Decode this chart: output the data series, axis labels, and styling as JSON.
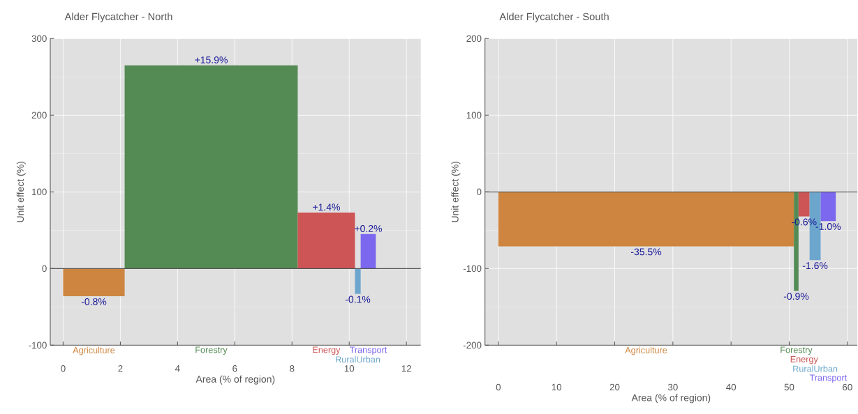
{
  "chart_data": [
    {
      "type": "histogram",
      "title": "Alder Flycatcher - North",
      "xlabel": "Area (% of region)",
      "ylabel": "Unit effect (%)",
      "categories": [
        "Agriculture",
        "Forestry",
        "Energy",
        "RuralUrban",
        "Transport"
      ],
      "bins": [
        0,
        2.15,
        8.2,
        10.2,
        10.4,
        10.93
      ],
      "values": [
        -36,
        265,
        73,
        -33,
        45
      ],
      "colors": [
        "#cd853f",
        "#548b54",
        "#cd5555",
        "#6ca6cd",
        "#7b68ee"
      ],
      "annotations": [
        {
          "text": "-0.8%",
          "x": 1.075,
          "y": -36
        },
        {
          "text": "+15.9%",
          "x": 5.175,
          "y": 265
        },
        {
          "text": "+1.4%",
          "x": 9.2,
          "y": 73
        },
        {
          "text": "-0.1%",
          "x": 10.3,
          "y": -33
        },
        {
          "text": "+0.2%",
          "x": 10.665,
          "y": 45
        }
      ],
      "xlim": [
        -0.45,
        12.5
      ],
      "ylim": [
        -100,
        300
      ],
      "xticks": [
        0,
        2,
        4,
        6,
        8,
        10,
        12
      ],
      "yticks": [
        -100,
        0,
        100,
        200,
        300
      ],
      "ref_lines": [
        {
          "axis": "y",
          "value": 0,
          "color": "#555555"
        }
      ],
      "grid": true
    },
    {
      "type": "histogram",
      "title": "Alder Flycatcher - South",
      "xlabel": "Area (% of region)",
      "ylabel": "Unit effect (%)",
      "categories": [
        "Agriculture",
        "Forestry",
        "Energy",
        "RuralUrban",
        "Transport"
      ],
      "bins": [
        0,
        50.8,
        51.6,
        53.5,
        55.4,
        58.0
      ],
      "values": [
        -71,
        -129,
        -32,
        -89,
        -38
      ],
      "colors": [
        "#cd853f",
        "#548b54",
        "#cd5555",
        "#6ca6cd",
        "#7b68ee"
      ],
      "annotations": [
        {
          "text": "-35.5%",
          "x": 25.4,
          "y": -71
        },
        {
          "text": "-0.9%",
          "x": 51.2,
          "y": -129
        },
        {
          "text": "-0.6%",
          "x": 52.55,
          "y": -32
        },
        {
          "text": "-1.6%",
          "x": 54.45,
          "y": -89
        },
        {
          "text": "-1.0%",
          "x": 56.7,
          "y": -38
        }
      ],
      "xlim": [
        -2.3,
        61.7
      ],
      "ylim": [
        -200,
        200
      ],
      "xticks": [
        0,
        10,
        20,
        30,
        40,
        50,
        60
      ],
      "yticks": [
        -200,
        -100,
        0,
        100,
        200
      ],
      "ref_lines": [
        {
          "axis": "y",
          "value": 0,
          "color": "#555555"
        }
      ],
      "grid": true
    }
  ]
}
